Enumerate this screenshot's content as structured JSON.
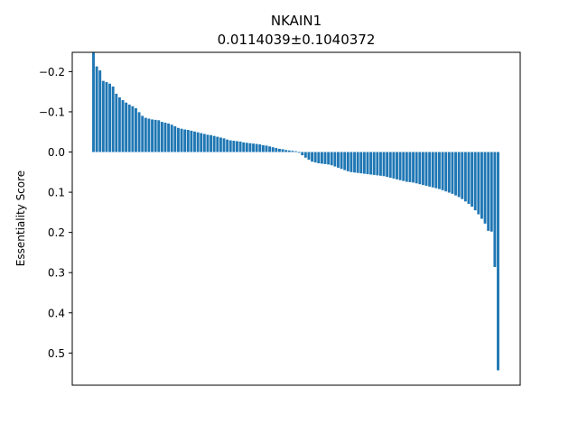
{
  "chart_data": {
    "type": "bar",
    "title": "NKAIN1",
    "subtitle": "0.0114039±0.1040372",
    "xlabel": "",
    "ylabel": "Essentiality Score",
    "y_inverted": true,
    "ylim": [
      -0.248,
      0.58
    ],
    "grid": false,
    "bar_color": "#1f77b4",
    "yticks": [
      -0.2,
      -0.1,
      0.0,
      0.1,
      0.2,
      0.3,
      0.4,
      0.5
    ],
    "ytick_labels": [
      "−0.2",
      "−0.1",
      "0.0",
      "0.1",
      "0.2",
      "0.3",
      "0.4",
      "0.5"
    ],
    "values": [
      -0.247,
      -0.213,
      -0.203,
      -0.177,
      -0.174,
      -0.17,
      -0.163,
      -0.145,
      -0.136,
      -0.129,
      -0.123,
      -0.118,
      -0.114,
      -0.109,
      -0.099,
      -0.09,
      -0.085,
      -0.083,
      -0.081,
      -0.08,
      -0.079,
      -0.075,
      -0.073,
      -0.071,
      -0.068,
      -0.064,
      -0.06,
      -0.058,
      -0.056,
      -0.055,
      -0.053,
      -0.051,
      -0.049,
      -0.047,
      -0.045,
      -0.043,
      -0.042,
      -0.04,
      -0.038,
      -0.036,
      -0.034,
      -0.031,
      -0.029,
      -0.028,
      -0.027,
      -0.026,
      -0.024,
      -0.023,
      -0.022,
      -0.021,
      -0.02,
      -0.019,
      -0.017,
      -0.016,
      -0.014,
      -0.012,
      -0.01,
      -0.008,
      -0.007,
      -0.005,
      -0.004,
      -0.003,
      -0.002,
      0.002,
      0.008,
      0.014,
      0.019,
      0.024,
      0.026,
      0.028,
      0.029,
      0.03,
      0.031,
      0.033,
      0.036,
      0.039,
      0.042,
      0.045,
      0.048,
      0.05,
      0.051,
      0.052,
      0.053,
      0.054,
      0.055,
      0.056,
      0.057,
      0.058,
      0.059,
      0.06,
      0.062,
      0.064,
      0.066,
      0.068,
      0.07,
      0.072,
      0.074,
      0.075,
      0.076,
      0.078,
      0.08,
      0.082,
      0.084,
      0.086,
      0.088,
      0.09,
      0.092,
      0.095,
      0.098,
      0.101,
      0.104,
      0.108,
      0.112,
      0.117,
      0.123,
      0.129,
      0.136,
      0.145,
      0.155,
      0.166,
      0.178,
      0.196,
      0.198,
      0.286,
      0.543
    ]
  }
}
